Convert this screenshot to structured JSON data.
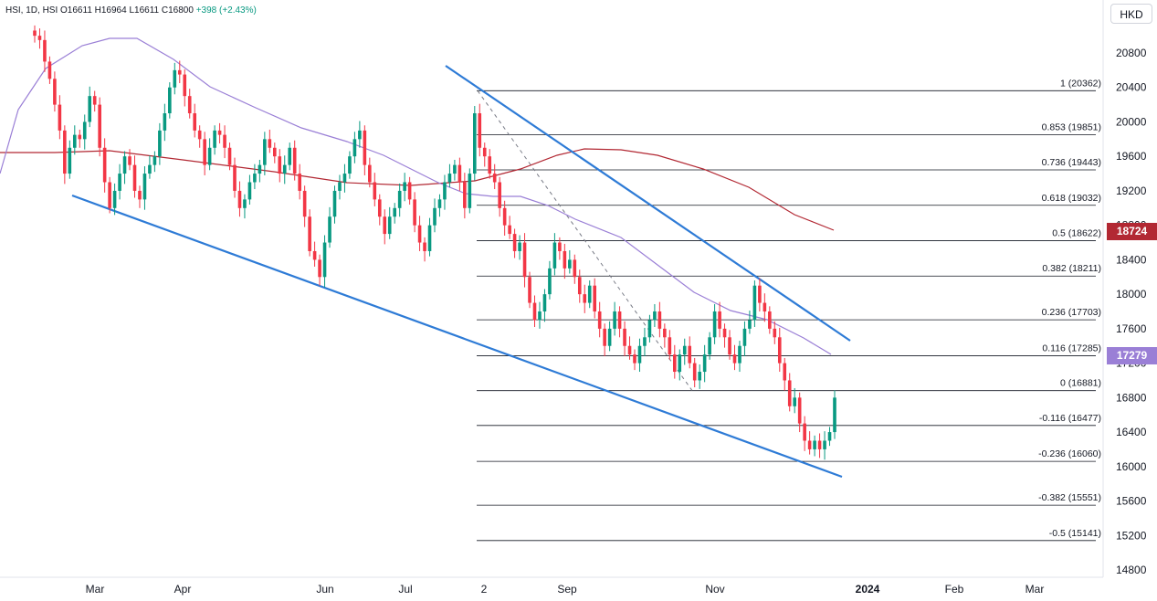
{
  "header": {
    "symbol": "HSI, 1D, HSI",
    "ohlc": "O16611 H16964 L16611 C16800",
    "change": "+398 (+2.43%)"
  },
  "currency_button": {
    "label": "HKD"
  },
  "badges": {
    "ma200": "18724",
    "ma50": "17279"
  },
  "colors": {
    "up": "#089981",
    "down": "#f23645",
    "trend": "#2e7bd6",
    "ma50": "#9a7fd6",
    "ma200": "#b22833",
    "fib": "#131722",
    "grid": "#e0e3eb"
  },
  "chart_data": {
    "type": "candlestick",
    "ylim": [
      14600,
      21100
    ],
    "y_ticks": [
      "14800",
      "15200",
      "15600",
      "16000",
      "16400",
      "16800",
      "17200",
      "17600",
      "18000",
      "18400",
      "18800",
      "19200",
      "19600",
      "20000",
      "20400",
      "20800"
    ],
    "x_ticks": [
      "Mar",
      "Apr",
      "Jun",
      "Jul",
      "2",
      "Sep",
      "Nov",
      "2024",
      "Feb",
      "Mar"
    ],
    "fibonacci": [
      {
        "label": "1 (20362)",
        "value": 20362
      },
      {
        "label": "0.853 (19851)",
        "value": 19851
      },
      {
        "label": "0.736 (19443)",
        "value": 19443
      },
      {
        "label": "0.618 (19032)",
        "value": 19032
      },
      {
        "label": "0.5 (18622)",
        "value": 18622
      },
      {
        "label": "0.382 (18211)",
        "value": 18211
      },
      {
        "label": "0.236 (17703)",
        "value": 17703
      },
      {
        "label": "0.116 (17285)",
        "value": 17285
      },
      {
        "label": "0 (16881)",
        "value": 16881
      },
      {
        "label": "-0.116 (16477)",
        "value": 16477
      },
      {
        "label": "-0.236 (16060)",
        "value": 16060
      },
      {
        "label": "-0.382 (15551)",
        "value": 15551
      },
      {
        "label": "-0.5 (15141)",
        "value": 15141
      }
    ],
    "closes": [
      21000,
      20950,
      20700,
      20500,
      20200,
      19900,
      19400,
      19700,
      19850,
      19800,
      20000,
      20300,
      20200,
      19700,
      19300,
      19000,
      19200,
      19400,
      19600,
      19500,
      19200,
      19100,
      19400,
      19500,
      19600,
      19900,
      20100,
      20400,
      20600,
      20550,
      20300,
      20100,
      19900,
      19800,
      19500,
      19700,
      19900,
      19850,
      19700,
      19500,
      19200,
      19000,
      19100,
      19300,
      19400,
      19500,
      19800,
      19700,
      19600,
      19400,
      19500,
      19700,
      19400,
      19200,
      18900,
      18500,
      18400,
      18200,
      18600,
      18900,
      19200,
      19300,
      19400,
      19600,
      19800,
      19900,
      19500,
      19300,
      19100,
      18900,
      18700,
      18900,
      19000,
      19200,
      19300,
      19100,
      18800,
      18600,
      18500,
      18800,
      19000,
      19100,
      19300,
      19400,
      19500,
      19300,
      19000,
      19400,
      20100,
      19700,
      19600,
      19400,
      19300,
      19000,
      18800,
      18700,
      18500,
      18600,
      18200,
      17900,
      17700,
      17800,
      18000,
      18300,
      18600,
      18500,
      18300,
      18400,
      18200,
      18000,
      17900,
      18100,
      17800,
      17600,
      17400,
      17600,
      17800,
      17600,
      17400,
      17300,
      17200,
      17400,
      17500,
      17700,
      17800,
      17600,
      17500,
      17300,
      17100,
      17300,
      17400,
      17200,
      17000,
      17100,
      17300,
      17500,
      17800,
      17600,
      17500,
      17300,
      17200,
      17400,
      17600,
      17700,
      18100,
      17900,
      17800,
      17600,
      17500,
      17200,
      17000,
      16700,
      16800,
      16500,
      16300,
      16200,
      16300,
      16200,
      16300,
      16400,
      16800
    ]
  }
}
